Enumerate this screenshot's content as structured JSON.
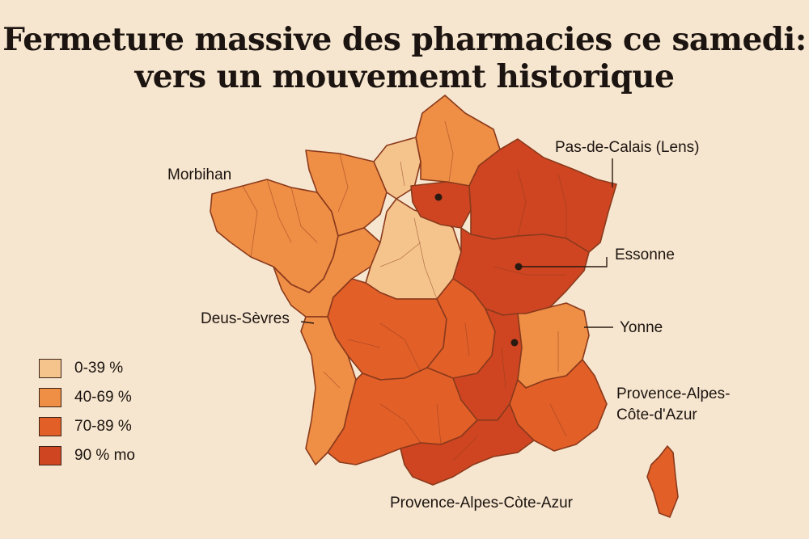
{
  "title": {
    "line1": "Fermeture massive des pharmacies ce samedi:",
    "line2": "vers un mouvememt historique"
  },
  "colors": {
    "background": "#f7e6cf",
    "bin_0_39": "#f5c48d",
    "bin_40_69": "#ef8e45",
    "bin_70_89": "#e35f28",
    "bin_90_plus": "#cf4522",
    "border": "#8a3a1c"
  },
  "legend": [
    {
      "label": "0-39 %",
      "color": "#f5c48d"
    },
    {
      "label": "40-69 %",
      "color": "#ef8e45"
    },
    {
      "label": "70-89 %",
      "color": "#e35f28"
    },
    {
      "label": "90 % mo",
      "color": "#cf4522"
    }
  ],
  "labels": {
    "morbihan": "Morbihan",
    "pas_de_calais": "Pas-de-Calais (Lens)",
    "essonne": "Essonne",
    "deus_sevres": "Deus-Sèvres",
    "yonne": "Yonne",
    "paca_right_line1": "Provence-Alpes-",
    "paca_right_line2": "Côte-d'Azur",
    "paca_bottom": "Provence-Alpes-Còte-Azur"
  }
}
